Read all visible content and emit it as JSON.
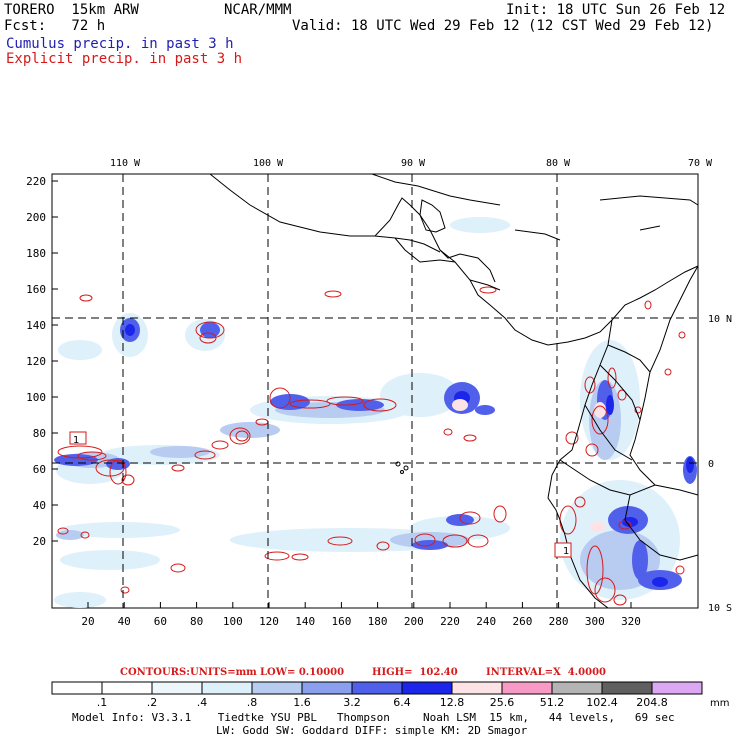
{
  "header": {
    "model": "TORERO  15km ARW",
    "center": "NCAR/MMM",
    "init": "Init: 18 UTC Sun 26 Feb 12",
    "fcst": "Fcst:   72 h",
    "valid": "Valid: 18 UTC Wed 29 Feb 12 (12 CST Wed 29 Feb 12)",
    "cumulus_label": "Cumulus precip. in past 3 h",
    "explicit_label": "Explicit precip. in past 3 h"
  },
  "colors": {
    "cumulus": "#1f1fb0",
    "explicit": "#d61a1a",
    "land": "#000000",
    "grid": "#000000"
  },
  "map": {
    "top_lon_labels": [
      "110 W",
      "100 W",
      "90 W",
      "80 W",
      "70 W"
    ],
    "right_lat_labels": [
      "10 N",
      "0",
      "10 S"
    ],
    "y_ticks": [
      "220",
      "200",
      "180",
      "160",
      "140",
      "120",
      "100",
      "80",
      "60",
      "40",
      "20"
    ],
    "x_ticks": [
      "20",
      "40",
      "60",
      "80",
      "100",
      "120",
      "140",
      "160",
      "180",
      "200",
      "220",
      "240",
      "260",
      "280",
      "300",
      "320"
    ],
    "marker_1_label": "1",
    "marker_2_label": "1"
  },
  "contours": {
    "label": "CONTOURS:",
    "units": "UNITS=mm",
    "low": "LOW= 0.10000",
    "high": "HIGH=  102.40",
    "interval": "INTERVAL=X  4.0000"
  },
  "colorbar": {
    "unit": "mm",
    "labels": [
      ".1",
      ".2",
      ".4",
      ".8",
      "1.6",
      "3.2",
      "6.4",
      "12.8",
      "25.6",
      "51.2",
      "102.4",
      "204.8"
    ],
    "colors": [
      "#ffffff",
      "#ffffff",
      "#eef8fc",
      "#def0fa",
      "#b8ccf2",
      "#8aa0ee",
      "#5060ea",
      "#1c26ea",
      "#fde3e6",
      "#f79ac6",
      "#b4b4b4",
      "#606060",
      "#dca8f4"
    ]
  },
  "footer": {
    "line1": "Model Info: V3.3.1    Tiedtke YSU PBL   Thompson     Noah LSM  15 km,   44 levels,   69 sec",
    "line2": "LW: Godd SW: Goddard DIFF: simple KM: 2D Smagor"
  }
}
